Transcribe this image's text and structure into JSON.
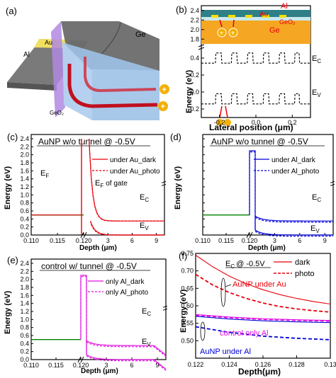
{
  "figure": {
    "panel_letters": [
      "(a)",
      "(b)",
      "(c)",
      "(d)",
      "(e)",
      "(f)"
    ]
  },
  "panel_a": {
    "labels": {
      "al": "Al",
      "au": "Au",
      "ge": "Ge",
      "geo2": "GeO₂",
      "plus": "+"
    }
  },
  "chart_data": [
    {
      "id": "b",
      "type": "line",
      "title": "",
      "xlabel": "Lateral position (μm)",
      "ylabel": "Energy (eV)",
      "xlim": [
        -0.3,
        0.3
      ],
      "ylim": [
        -0.3,
        2.5
      ],
      "xticks": [
        "-0.2",
        "0.0",
        "0.2"
      ],
      "yticks": [
        "-0.2",
        "0.0",
        "0.2",
        "0.4",
        "1.8",
        "2.0",
        "2.2",
        "2.4"
      ],
      "inset_labels": {
        "al": "Al",
        "au": "Au",
        "geo2": "GeO₂",
        "ge": "Ge"
      },
      "band_labels": {
        "ec": "E",
        "ec_sub": "C",
        "ev": "E",
        "ev_sub": "V"
      },
      "series": [
        {
          "label": "E_C",
          "base": 0.34,
          "peak": 0.46,
          "period_um": 0.087,
          "first_peak_um": -0.22
        },
        {
          "label": "E_V",
          "base": -0.14,
          "peak": -0.02,
          "period_um": 0.087,
          "first_peak_um": -0.22
        }
      ]
    },
    {
      "id": "c",
      "type": "line",
      "title": "AuNP w/o tunnel @ -0.5V",
      "xlabel": "Depth (μm)",
      "ylabel": "Energy (eV)",
      "x_break": true,
      "x_segments": [
        {
          "range": [
            0.11,
            0.12
          ],
          "ticks": [
            "0.110",
            "0.115",
            "0.120"
          ]
        },
        {
          "range": [
            0,
            10
          ],
          "ticks": [
            "3",
            "6",
            "9"
          ]
        }
      ],
      "ylim": [
        0,
        2.4
      ],
      "yticks": [
        "0.0",
        "0.2",
        "0.4",
        "0.6",
        "0.8",
        "1.0",
        "1.2",
        "1.4",
        "1.6",
        "1.8",
        "2.0",
        "2.2",
        "2.4"
      ],
      "fermi_labels": {
        "ef": "E",
        "ef_sub": "F",
        "efg": "E",
        "efg_sub": "F",
        "efg_suffix": "of gate"
      },
      "band_labels": {
        "ec": "E",
        "ec_sub": "C",
        "ev": "E",
        "ev_sub": "V"
      },
      "legend": [
        "under Au_dark",
        "under Au_photo"
      ],
      "levels": {
        "fermi": 0.5,
        "ec_bulk": 0.35,
        "ev_bulk": 0.0,
        "gate_spike": 2.4
      }
    },
    {
      "id": "d",
      "type": "line",
      "title": "AuNP w/o tunnel @ -0.5V",
      "xlabel": "Depth (μm)",
      "ylabel": "Energy (eV)",
      "x_break": true,
      "x_segments": [
        {
          "range": [
            0.11,
            0.12
          ],
          "ticks": [
            "0.110",
            "0.115",
            "0.120"
          ]
        },
        {
          "range": [
            0,
            10
          ],
          "ticks": [
            "3",
            "6",
            "9"
          ]
        }
      ],
      "ylim": [
        0,
        2.4
      ],
      "band_labels": {
        "ec": "E",
        "ec_sub": "C",
        "ev": "E",
        "ev_sub": "V"
      },
      "legend": [
        "under Al_dark",
        "under Al_photo"
      ],
      "levels": {
        "fermi": 0.5,
        "ec_bulk": 0.35,
        "ev_bulk": 0.0,
        "barrier": 2.1
      }
    },
    {
      "id": "e",
      "type": "line",
      "title": "control w/ tunnel @ -0.5V",
      "xlabel": "Depth (μm)",
      "ylabel": "Energy (eV)",
      "x_break": true,
      "x_segments": [
        {
          "range": [
            0.11,
            0.12
          ],
          "ticks": [
            "0.110",
            "0.115",
            "0.120"
          ]
        },
        {
          "range": [
            0,
            10
          ],
          "ticks": [
            "3",
            "6",
            "9"
          ]
        }
      ],
      "ylim": [
        0,
        2.4
      ],
      "yticks": [
        "0.0",
        "0.2",
        "0.4",
        "0.6",
        "0.8",
        "1.0",
        "1.2",
        "1.4",
        "1.6",
        "1.8",
        "2.0",
        "2.2",
        "2.4"
      ],
      "band_labels": {
        "ec": "E",
        "ec_sub": "C",
        "ev": "E",
        "ev_sub": "V"
      },
      "legend": [
        "only Al_dark",
        "only Al_photo"
      ],
      "levels": {
        "fermi": 0.5,
        "ec_bulk": 0.35,
        "ev_bulk": 0.0,
        "barrier": 2.1
      }
    },
    {
      "id": "f",
      "type": "line",
      "title": "",
      "annotation": "E",
      "annotation_sub": "C",
      "annotation_suffix": "@ -0.5V",
      "xlabel": "Depth(μm)",
      "ylabel": "Energy (eV)",
      "xlim": [
        0.122,
        0.13
      ],
      "ylim": [
        0.45,
        0.75
      ],
      "xticks": [
        "0.122",
        "0.124",
        "0.126",
        "0.128",
        "0.13"
      ],
      "yticks": [
        "0.50",
        "0.55",
        "0.60",
        "0.65",
        "0.70",
        "0.75"
      ],
      "legend": [
        "dark",
        "photo"
      ],
      "group_labels": [
        "AuNP under Au",
        "control only Al",
        "AuNP under Al"
      ],
      "series": [
        {
          "name": "AuNP under Au",
          "mode": "dark",
          "x": [
            0.122,
            0.123,
            0.124,
            0.125,
            0.126,
            0.127,
            0.128,
            0.129,
            0.13
          ],
          "y": [
            0.745,
            0.712,
            0.685,
            0.663,
            0.646,
            0.632,
            0.621,
            0.612,
            0.605
          ]
        },
        {
          "name": "AuNP under Au",
          "mode": "photo",
          "x": [
            0.122,
            0.123,
            0.124,
            0.125,
            0.126,
            0.127,
            0.128,
            0.129,
            0.13
          ],
          "y": [
            0.69,
            0.66,
            0.638,
            0.621,
            0.608,
            0.598,
            0.591,
            0.586,
            0.582
          ]
        },
        {
          "name": "control only Al",
          "mode": "dark",
          "x": [
            0.122,
            0.124,
            0.126,
            0.128,
            0.13
          ],
          "y": [
            0.575,
            0.568,
            0.563,
            0.56,
            0.558
          ]
        },
        {
          "name": "control only Al",
          "mode": "photo",
          "x": [
            0.122,
            0.124,
            0.126,
            0.128,
            0.13
          ],
          "y": [
            0.573,
            0.566,
            0.561,
            0.558,
            0.556
          ]
        },
        {
          "name": "AuNP under Al",
          "mode": "dark",
          "x": [
            0.122,
            0.124,
            0.126,
            0.128,
            0.13
          ],
          "y": [
            0.57,
            0.562,
            0.557,
            0.554,
            0.552
          ]
        },
        {
          "name": "AuNP under Al",
          "mode": "photo",
          "x": [
            0.122,
            0.124,
            0.126,
            0.128,
            0.13
          ],
          "y": [
            0.54,
            0.524,
            0.513,
            0.507,
            0.503
          ]
        }
      ]
    }
  ],
  "colors": {
    "red": "#e8000b",
    "blue": "#0000d8",
    "magenta": "#e010e0",
    "green": "#008000",
    "gold": "#f4b000",
    "frame": "#000000"
  }
}
